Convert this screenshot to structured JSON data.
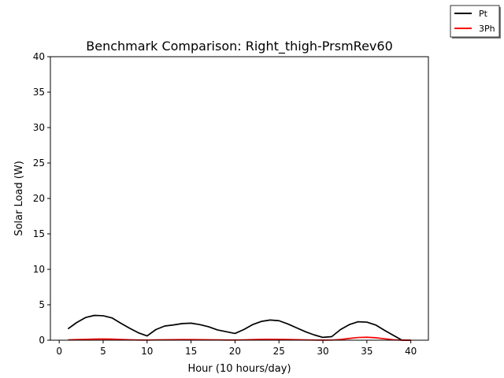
{
  "chart_data": {
    "type": "line",
    "title": "Benchmark Comparison: Right_thigh-PrsmRev60",
    "xlabel": "Hour (10 hours/day)",
    "ylabel": "Solar Load (W)",
    "xlim": [
      -1,
      42
    ],
    "ylim": [
      0,
      40
    ],
    "xticks": [
      0,
      5,
      10,
      15,
      20,
      25,
      30,
      35,
      40
    ],
    "yticks": [
      0,
      5,
      10,
      15,
      20,
      25,
      30,
      35,
      40
    ],
    "grid": false,
    "legend_position": "top-right (outside axes)",
    "x": [
      1,
      2,
      3,
      4,
      5,
      6,
      7,
      8,
      9,
      10,
      11,
      12,
      13,
      14,
      15,
      16,
      17,
      18,
      19,
      20,
      21,
      22,
      23,
      24,
      25,
      26,
      27,
      28,
      29,
      30,
      31,
      32,
      33,
      34,
      35,
      36,
      37,
      38,
      39,
      40
    ],
    "series": [
      {
        "name": "Pt",
        "color": "#000000",
        "values": [
          1.6,
          2.5,
          3.2,
          3.5,
          3.45,
          3.15,
          2.4,
          1.7,
          1.05,
          0.6,
          1.5,
          2.0,
          2.15,
          2.35,
          2.4,
          2.2,
          1.9,
          1.45,
          1.2,
          0.95,
          1.5,
          2.2,
          2.65,
          2.85,
          2.75,
          2.3,
          1.75,
          1.2,
          0.75,
          0.4,
          0.5,
          1.5,
          2.2,
          2.6,
          2.55,
          2.15,
          1.4,
          0.7,
          0.0,
          0.0
        ]
      },
      {
        "name": "3Ph",
        "color": "#ff0000",
        "values": [
          0.05,
          0.08,
          0.12,
          0.15,
          0.17,
          0.15,
          0.1,
          0.06,
          0.03,
          0.02,
          0.04,
          0.06,
          0.07,
          0.08,
          0.08,
          0.07,
          0.06,
          0.04,
          0.03,
          0.03,
          0.05,
          0.08,
          0.11,
          0.13,
          0.12,
          0.1,
          0.07,
          0.04,
          0.02,
          0.01,
          0.02,
          0.1,
          0.25,
          0.38,
          0.42,
          0.35,
          0.2,
          0.06,
          0.0,
          0.0
        ]
      }
    ]
  }
}
